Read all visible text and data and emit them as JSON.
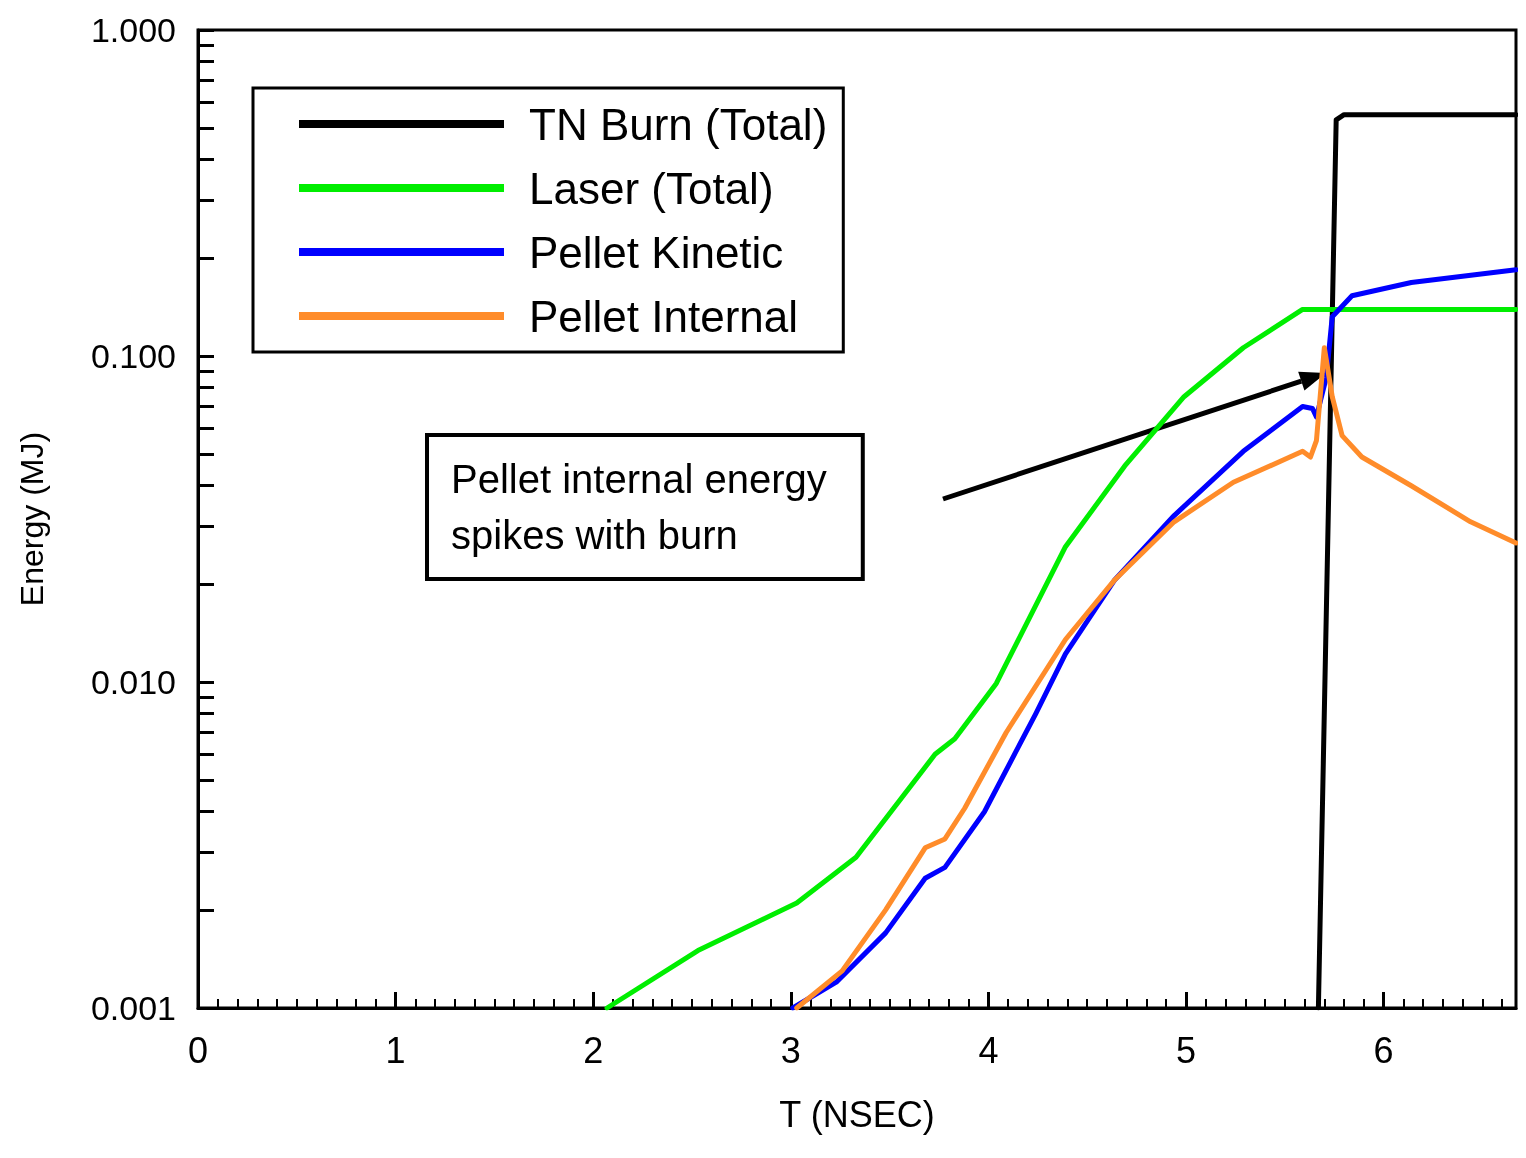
{
  "chart_data": {
    "type": "line",
    "xlabel": "T (NSEC)",
    "ylabel": "Energy (MJ)",
    "log": "y",
    "grid": false,
    "legend": "top left",
    "marker": "none",
    "line_style": "solid",
    "xlim": [
      0,
      6.67
    ],
    "xticks": [
      0,
      1,
      2,
      3,
      4,
      5,
      6
    ],
    "ylim": [
      0.001,
      1
    ],
    "yticks": [
      {
        "value": 0.001,
        "label": "0.001"
      },
      {
        "value": 0.01,
        "label": "0.010"
      },
      {
        "value": 0.1,
        "label": "0.100"
      },
      {
        "value": 1,
        "label": "1.000"
      }
    ],
    "annotations": [
      "Pellet internal energy\nspikes with burn"
    ],
    "series": [
      {
        "name": "TN Burn (Total)",
        "color": "#000000",
        "x": [
          5.67,
          5.76,
          5.8,
          6.67
        ],
        "values": [
          0.001,
          0.53,
          0.55,
          0.55
        ]
      },
      {
        "name": "Laser (Total)",
        "color": "#00ee00",
        "x": [
          2.07,
          2.53,
          3.03,
          3.33,
          3.73,
          3.83,
          4.04,
          4.39,
          4.69,
          4.99,
          5.29,
          5.59,
          6.67
        ],
        "values": [
          0.001,
          0.0015,
          0.0021,
          0.0029,
          0.006,
          0.0067,
          0.0099,
          0.026,
          0.046,
          0.075,
          0.106,
          0.139,
          0.139
        ]
      },
      {
        "name": "Pellet Kinetic",
        "color": "#0000ff",
        "x": [
          3.01,
          3.23,
          3.48,
          3.68,
          3.78,
          3.98,
          4.24,
          4.39,
          4.64,
          4.94,
          5.29,
          5.59,
          5.64,
          5.66,
          5.71,
          5.74,
          5.84,
          6.14,
          6.67
        ],
        "values": [
          0.001,
          0.0012,
          0.0017,
          0.0025,
          0.0027,
          0.004,
          0.008,
          0.0122,
          0.0206,
          0.0324,
          0.051,
          0.07,
          0.069,
          0.065,
          0.086,
          0.132,
          0.153,
          0.168,
          0.184
        ]
      },
      {
        "name": "Pellet Internal",
        "color": "#ff8c2a",
        "x": [
          3.03,
          3.26,
          3.48,
          3.68,
          3.78,
          3.88,
          4.09,
          4.39,
          4.64,
          4.94,
          5.24,
          5.59,
          5.63,
          5.66,
          5.7,
          5.74,
          5.79,
          5.89,
          6.14,
          6.44,
          6.67
        ],
        "values": [
          0.001,
          0.0013,
          0.002,
          0.0031,
          0.0033,
          0.0041,
          0.007,
          0.0135,
          0.0206,
          0.031,
          0.041,
          0.051,
          0.049,
          0.055,
          0.106,
          0.075,
          0.057,
          0.049,
          0.04,
          0.031,
          0.0267
        ]
      }
    ]
  }
}
